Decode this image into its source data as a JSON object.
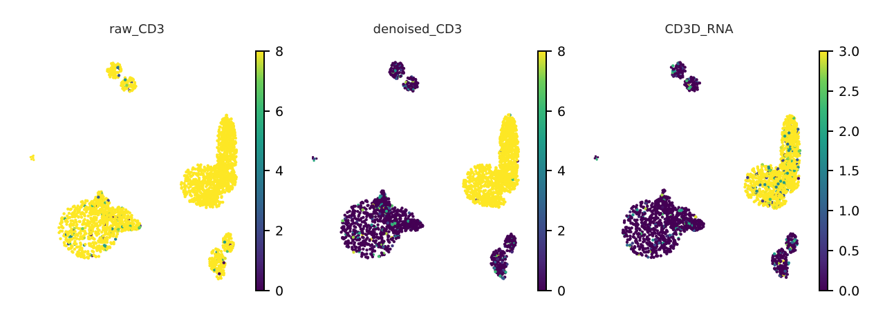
{
  "chart_data": [
    {
      "type": "scatter",
      "title": "raw_CD3",
      "colormap": "viridis",
      "colorbar": {
        "min": 0,
        "max": 8,
        "ticks": [
          0,
          2,
          4,
          6,
          8
        ],
        "tick_labels": [
          "0",
          "2",
          "4",
          "6",
          "8"
        ]
      },
      "clusters": [
        {
          "name": "top",
          "value": 8,
          "mix": 0.06
        },
        {
          "name": "left-small",
          "value": 8,
          "mix": 0.0
        },
        {
          "name": "bottom-left",
          "value": 8,
          "mix": 0.07
        },
        {
          "name": "right-large",
          "value": 8,
          "mix": 0.0
        },
        {
          "name": "bottom-right",
          "value": 8,
          "mix": 0.08
        }
      ]
    },
    {
      "type": "scatter",
      "title": "denoised_CD3",
      "colormap": "viridis",
      "colorbar": {
        "min": 0,
        "max": 8,
        "ticks": [
          0,
          2,
          4,
          6,
          8
        ],
        "tick_labels": [
          "0",
          "2",
          "4",
          "6",
          "8"
        ]
      },
      "clusters": [
        {
          "name": "top",
          "value": 0,
          "mix": 0.25
        },
        {
          "name": "left-small",
          "value": 0,
          "mix": 0.3
        },
        {
          "name": "bottom-left",
          "value": 0,
          "mix": 0.08
        },
        {
          "name": "right-large",
          "value": 8,
          "mix": 0.01
        },
        {
          "name": "bottom-right",
          "value": 0,
          "mix": 0.2
        }
      ]
    },
    {
      "type": "scatter",
      "title": "CD3D_RNA",
      "colormap": "viridis",
      "colorbar": {
        "min": 0.0,
        "max": 3.0,
        "ticks": [
          0,
          0.5,
          1,
          1.5,
          2,
          2.5,
          3
        ],
        "tick_labels": [
          "0.0",
          "0.5",
          "1.0",
          "1.5",
          "2.0",
          "2.5",
          "3.0"
        ]
      },
      "clusters": [
        {
          "name": "top",
          "value": 0,
          "mix": 0.2
        },
        {
          "name": "left-small",
          "value": 0,
          "mix": 0.4
        },
        {
          "name": "bottom-left",
          "value": 0,
          "mix": 0.1
        },
        {
          "name": "right-large",
          "value": 3,
          "mix": 0.12
        },
        {
          "name": "bottom-right",
          "value": 0,
          "mix": 0.2
        }
      ]
    }
  ]
}
